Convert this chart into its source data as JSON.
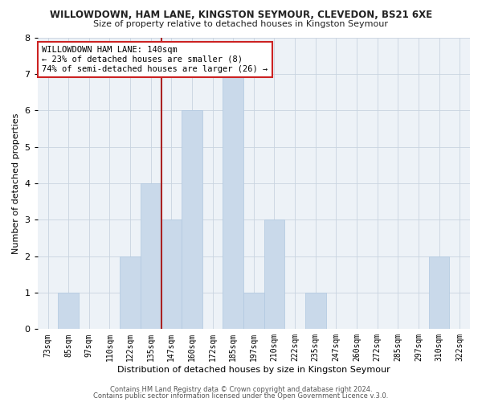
{
  "title": "WILLOWDOWN, HAM LANE, KINGSTON SEYMOUR, CLEVEDON, BS21 6XE",
  "subtitle": "Size of property relative to detached houses in Kingston Seymour",
  "xlabel": "Distribution of detached houses by size in Kingston Seymour",
  "ylabel": "Number of detached properties",
  "bins": [
    "73sqm",
    "85sqm",
    "97sqm",
    "110sqm",
    "122sqm",
    "135sqm",
    "147sqm",
    "160sqm",
    "172sqm",
    "185sqm",
    "197sqm",
    "210sqm",
    "222sqm",
    "235sqm",
    "247sqm",
    "260sqm",
    "272sqm",
    "285sqm",
    "297sqm",
    "310sqm",
    "322sqm"
  ],
  "values": [
    0,
    1,
    0,
    0,
    2,
    4,
    3,
    6,
    0,
    7,
    1,
    3,
    0,
    1,
    0,
    0,
    0,
    0,
    0,
    2,
    0
  ],
  "bar_color": "#c9d9ea",
  "bar_edge_color": "#b0c8e0",
  "grid_color": "#c8d4e0",
  "bg_color": "#edf2f7",
  "vline_color": "#aa2222",
  "annotation_title": "WILLOWDOWN HAM LANE: 140sqm",
  "annotation_line1": "← 23% of detached houses are smaller (8)",
  "annotation_line2": "74% of semi-detached houses are larger (26) →",
  "annotation_box_color": "#ffffff",
  "annotation_box_edge": "#cc2222",
  "ylim": [
    0,
    8
  ],
  "yticks": [
    0,
    1,
    2,
    3,
    4,
    5,
    6,
    7,
    8
  ],
  "footer1": "Contains HM Land Registry data © Crown copyright and database right 2024.",
  "footer2": "Contains public sector information licensed under the Open Government Licence v.3.0.",
  "title_fontsize": 8.5,
  "subtitle_fontsize": 8,
  "tick_fontsize": 7,
  "axis_label_fontsize": 8
}
